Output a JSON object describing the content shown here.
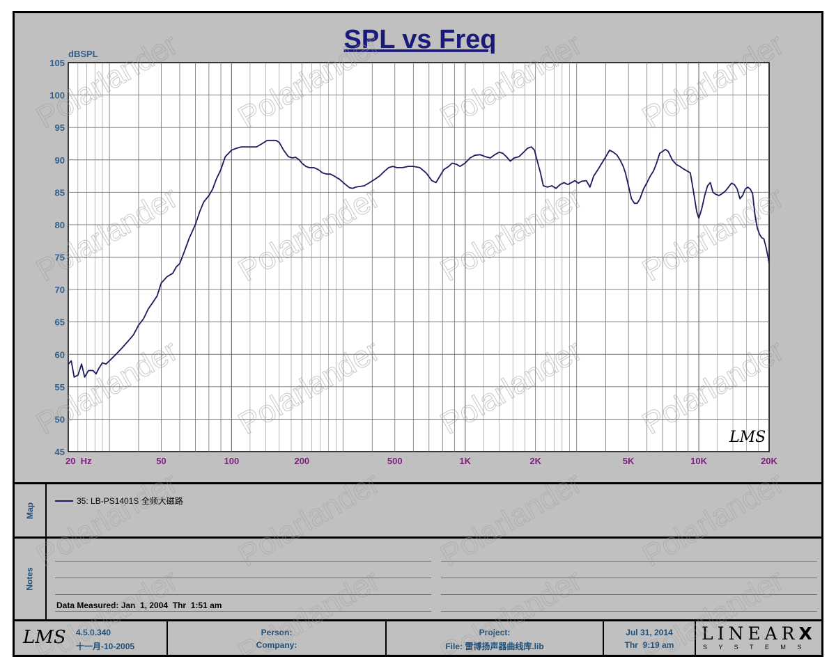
{
  "chart_data": {
    "type": "line",
    "title": "SPL vs Freq",
    "ylabel": "dBSPL",
    "xscale": "log",
    "xlim": [
      20,
      20000
    ],
    "ylim": [
      45,
      105
    ],
    "yticks": [
      45,
      50,
      55,
      60,
      65,
      70,
      75,
      80,
      85,
      90,
      95,
      100,
      105
    ],
    "xtick_values": [
      20,
      50,
      100,
      200,
      500,
      1000,
      2000,
      5000,
      10000,
      20000
    ],
    "xtick_labels": [
      "20  Hz",
      "50",
      "100",
      "200",
      "500",
      "1K",
      "2K",
      "5K",
      "10K",
      "20K"
    ],
    "grid": true,
    "series": [
      {
        "name": "35: LB-PS1401S 全频大磁路",
        "color": "#1a1a5e",
        "points": [
          [
            20,
            58.5
          ],
          [
            20.6,
            59
          ],
          [
            21.2,
            56.5
          ],
          [
            22,
            56.8
          ],
          [
            22.8,
            58.5
          ],
          [
            23.5,
            56.5
          ],
          [
            24.4,
            57.5
          ],
          [
            25.5,
            57.5
          ],
          [
            26.3,
            57
          ],
          [
            27,
            57.8
          ],
          [
            28,
            58.7
          ],
          [
            29,
            58.5
          ],
          [
            30,
            59
          ],
          [
            32,
            60
          ],
          [
            34,
            61
          ],
          [
            36,
            62
          ],
          [
            38,
            63
          ],
          [
            40,
            64.5
          ],
          [
            42,
            65.5
          ],
          [
            44,
            67
          ],
          [
            46,
            68
          ],
          [
            48,
            69
          ],
          [
            50,
            71
          ],
          [
            53,
            72
          ],
          [
            56,
            72.5
          ],
          [
            58,
            73.5
          ],
          [
            60,
            74
          ],
          [
            63,
            76
          ],
          [
            66,
            78
          ],
          [
            70,
            80
          ],
          [
            73,
            82
          ],
          [
            76,
            83.5
          ],
          [
            80,
            84.5
          ],
          [
            83,
            85.5
          ],
          [
            86,
            87
          ],
          [
            90,
            88.5
          ],
          [
            94,
            90.5
          ],
          [
            97,
            91
          ],
          [
            100,
            91.5
          ],
          [
            105,
            91.8
          ],
          [
            110,
            92
          ],
          [
            115,
            92
          ],
          [
            120,
            92
          ],
          [
            128,
            92
          ],
          [
            135,
            92.5
          ],
          [
            142,
            93
          ],
          [
            150,
            93
          ],
          [
            155,
            93
          ],
          [
            160,
            92.7
          ],
          [
            167,
            91.5
          ],
          [
            175,
            90.5
          ],
          [
            182,
            90.3
          ],
          [
            188,
            90.4
          ],
          [
            195,
            90
          ],
          [
            200,
            89.5
          ],
          [
            208,
            89
          ],
          [
            215,
            88.8
          ],
          [
            225,
            88.8
          ],
          [
            235,
            88.5
          ],
          [
            245,
            88
          ],
          [
            255,
            87.8
          ],
          [
            265,
            87.8
          ],
          [
            275,
            87.5
          ],
          [
            290,
            87
          ],
          [
            305,
            86.3
          ],
          [
            320,
            85.7
          ],
          [
            330,
            85.6
          ],
          [
            340,
            85.8
          ],
          [
            355,
            85.9
          ],
          [
            370,
            86
          ],
          [
            390,
            86.5
          ],
          [
            410,
            87
          ],
          [
            430,
            87.5
          ],
          [
            450,
            88.2
          ],
          [
            470,
            88.8
          ],
          [
            490,
            89
          ],
          [
            510,
            88.8
          ],
          [
            540,
            88.8
          ],
          [
            570,
            89
          ],
          [
            600,
            89
          ],
          [
            640,
            88.8
          ],
          [
            680,
            88
          ],
          [
            720,
            86.8
          ],
          [
            750,
            86.5
          ],
          [
            780,
            87.5
          ],
          [
            810,
            88.5
          ],
          [
            850,
            89
          ],
          [
            880,
            89.5
          ],
          [
            920,
            89.3
          ],
          [
            950,
            89
          ],
          [
            1000,
            89.5
          ],
          [
            1050,
            90.3
          ],
          [
            1100,
            90.7
          ],
          [
            1160,
            90.8
          ],
          [
            1220,
            90.5
          ],
          [
            1280,
            90.3
          ],
          [
            1340,
            90.8
          ],
          [
            1400,
            91.2
          ],
          [
            1450,
            91
          ],
          [
            1500,
            90.5
          ],
          [
            1560,
            89.8
          ],
          [
            1620,
            90.3
          ],
          [
            1700,
            90.5
          ],
          [
            1780,
            91.2
          ],
          [
            1850,
            91.8
          ],
          [
            1920,
            92
          ],
          [
            1980,
            91.5
          ],
          [
            2030,
            90
          ],
          [
            2100,
            88
          ],
          [
            2160,
            86
          ],
          [
            2250,
            85.8
          ],
          [
            2350,
            86
          ],
          [
            2450,
            85.6
          ],
          [
            2550,
            86.2
          ],
          [
            2650,
            86.5
          ],
          [
            2750,
            86.2
          ],
          [
            2850,
            86.5
          ],
          [
            2950,
            86.8
          ],
          [
            3050,
            86.4
          ],
          [
            3150,
            86.7
          ],
          [
            3300,
            86.8
          ],
          [
            3420,
            85.8
          ],
          [
            3550,
            87.5
          ],
          [
            3700,
            88.5
          ],
          [
            3850,
            89.5
          ],
          [
            4000,
            90.5
          ],
          [
            4150,
            91.5
          ],
          [
            4300,
            91.2
          ],
          [
            4450,
            90.8
          ],
          [
            4600,
            90
          ],
          [
            4750,
            89
          ],
          [
            4850,
            88
          ],
          [
            5000,
            86
          ],
          [
            5150,
            84
          ],
          [
            5300,
            83.3
          ],
          [
            5450,
            83.3
          ],
          [
            5600,
            84
          ],
          [
            5800,
            85.5
          ],
          [
            6000,
            86.5
          ],
          [
            6200,
            87.5
          ],
          [
            6400,
            88.3
          ],
          [
            6600,
            89.5
          ],
          [
            6800,
            91
          ],
          [
            7000,
            91.3
          ],
          [
            7200,
            91.6
          ],
          [
            7400,
            91.3
          ],
          [
            7700,
            90
          ],
          [
            8000,
            89.3
          ],
          [
            8300,
            89
          ],
          [
            8600,
            88.6
          ],
          [
            8900,
            88.3
          ],
          [
            9200,
            88
          ],
          [
            9500,
            85
          ],
          [
            9800,
            82
          ],
          [
            10000,
            81
          ],
          [
            10300,
            82.5
          ],
          [
            10600,
            84.5
          ],
          [
            10900,
            86
          ],
          [
            11200,
            86.5
          ],
          [
            11500,
            85
          ],
          [
            11800,
            84.7
          ],
          [
            12200,
            84.5
          ],
          [
            12600,
            84.8
          ],
          [
            13000,
            85.2
          ],
          [
            13400,
            85.8
          ],
          [
            13800,
            86.4
          ],
          [
            14200,
            86.2
          ],
          [
            14600,
            85.5
          ],
          [
            15000,
            84
          ],
          [
            15400,
            84.5
          ],
          [
            15800,
            85.5
          ],
          [
            16200,
            85.8
          ],
          [
            16600,
            85.5
          ],
          [
            17000,
            84.8
          ],
          [
            17400,
            81.5
          ],
          [
            17800,
            79.5
          ],
          [
            18200,
            78.5
          ],
          [
            18600,
            78
          ],
          [
            19000,
            77.8
          ],
          [
            19400,
            76.5
          ],
          [
            19800,
            75
          ],
          [
            20000,
            74
          ]
        ]
      }
    ]
  },
  "watermark": "Polarlander",
  "chart_logo": "LMS",
  "map": {
    "label": "Map",
    "legend_text": "35: LB-PS1401S 全频大磁路",
    "legend_color": "#1a1a5e"
  },
  "notes": {
    "label": "Notes",
    "data_measured": "Data Measured: Jan  1, 2004  Thr  1:51 am"
  },
  "footer": {
    "logo": "LMS",
    "version": "4.5.0.340",
    "version_date": "十一月-10-2005",
    "person_label": "Person:",
    "company_label": "Company:",
    "project_label": "Project:",
    "file_label": "File: 雷博扬声器曲线库.lib",
    "date": "Jul 31, 2014",
    "time": "Thr  9:19 am",
    "brand": "LINEAR",
    "brand_x": "X",
    "brand_sub": "S Y S T E M S"
  },
  "colors": {
    "panel_bg": "#c0c0c0",
    "plot_bg": "#ffffff",
    "grid": "#707070",
    "axis_text": "#2f5f8a",
    "title": "#1a1a7a",
    "xtick_text": "#7a1f7a"
  }
}
